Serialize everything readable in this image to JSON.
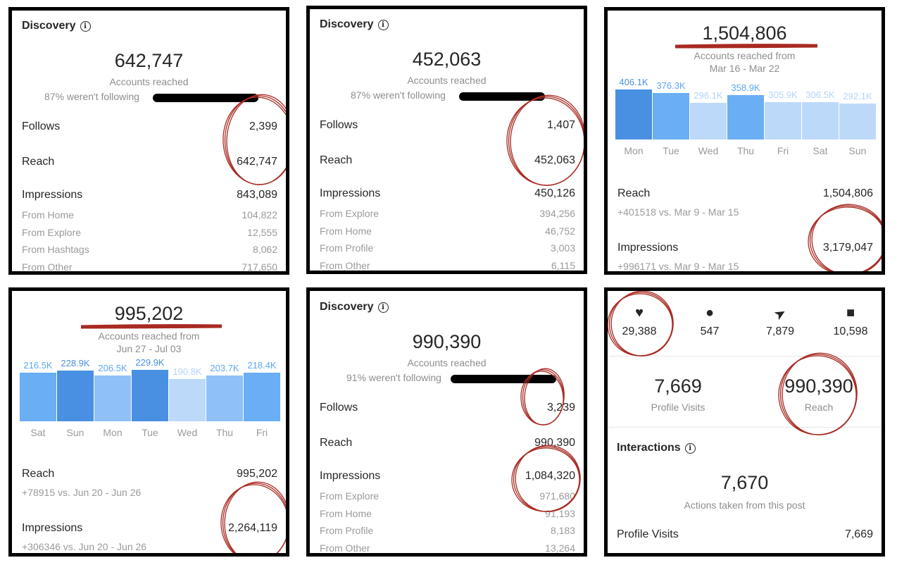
{
  "panel1": {
    "title": "Discovery",
    "info_icon": "i",
    "accounts_reached": "642,747",
    "accounts_label": "Accounts reached",
    "not_following": "87% weren't following",
    "follows_label": "Follows",
    "follows": "2,399",
    "reach_label": "Reach",
    "reach": "642,747",
    "impressions_label": "Impressions",
    "impressions": "843,089",
    "sources": [
      {
        "label": "From Home",
        "value": "104,822"
      },
      {
        "label": "From Explore",
        "value": "12,555"
      },
      {
        "label": "From Hashtags",
        "value": "8,062"
      },
      {
        "label": "From Other",
        "value": "717,650"
      }
    ]
  },
  "panel2": {
    "title": "Discovery",
    "info_icon": "i",
    "accounts_reached": "452,063",
    "accounts_label": "Accounts reached",
    "not_following": "87% weren't following",
    "follows_label": "Follows",
    "follows": "1,407",
    "reach_label": "Reach",
    "reach": "452,063",
    "impressions_label": "Impressions",
    "impressions": "450,126",
    "sources": [
      {
        "label": "From Explore",
        "value": "394,256"
      },
      {
        "label": "From Home",
        "value": "46,752"
      },
      {
        "label": "From Profile",
        "value": "3,003"
      },
      {
        "label": "From Other",
        "value": "6,115"
      }
    ]
  },
  "panel3": {
    "accounts_reached": "1,504,806",
    "accounts_label": "Accounts reached from",
    "date_range": "Mar 16 - Mar 22",
    "reach_label": "Reach",
    "reach": "1,504,806",
    "reach_change": "+401518 vs. Mar 9 - Mar 15",
    "impressions_label": "Impressions",
    "impressions": "3,179,047",
    "impressions_change": "+996171 vs. Mar 9 - Mar 15",
    "chart_data": {
      "type": "bar",
      "ylim": [
        0,
        430
      ],
      "unit": "K",
      "categories": [
        "Mon",
        "Tue",
        "Wed",
        "Thu",
        "Fri",
        "Sat",
        "Sun"
      ],
      "values": [
        406.1,
        376.3,
        296.1,
        358.9,
        305.9,
        306.5,
        292.1
      ],
      "labels": [
        "406.1K",
        "376.3K",
        "296.1K",
        "358.9K",
        "305.9K",
        "306.5K",
        "292.1K"
      ],
      "colors": [
        "#4a90e2",
        "#6aaef5",
        "#bcd9fa",
        "#6aaef5",
        "#bcd9fa",
        "#bcd9fa",
        "#bcd9fa"
      ]
    }
  },
  "panel4": {
    "accounts_reached": "995,202",
    "accounts_label": "Accounts reached from",
    "date_range": "Jun 27 - Jul 03",
    "reach_label": "Reach",
    "reach": "995,202",
    "reach_change": "+78915 vs. Jun 20 - Jun 26",
    "impressions_label": "Impressions",
    "impressions": "2,264,119",
    "impressions_change": "+306346 vs. Jun 20 - Jun 26",
    "chart_data": {
      "type": "bar",
      "ylim": [
        0,
        240
      ],
      "unit": "K",
      "categories": [
        "Sat",
        "Sun",
        "Mon",
        "Tue",
        "Wed",
        "Thu",
        "Fri"
      ],
      "values": [
        216.5,
        228.9,
        206.5,
        229.9,
        190.8,
        203.7,
        218.4
      ],
      "labels": [
        "216.5K",
        "228.9K",
        "206.5K",
        "229.9K",
        "190.8K",
        "203.7K",
        "218.4K"
      ],
      "colors": [
        "#6aaef5",
        "#4a90e2",
        "#8fc0f7",
        "#4a90e2",
        "#bcd9fa",
        "#8fc0f7",
        "#6aaef5"
      ]
    }
  },
  "panel5": {
    "title": "Discovery",
    "info_icon": "i",
    "accounts_reached": "990,390",
    "accounts_label": "Accounts reached",
    "not_following": "91% weren't following",
    "follows_label": "Follows",
    "follows": "3,239",
    "reach_label": "Reach",
    "reach": "990,390",
    "impressions_label": "Impressions",
    "impressions": "1,084,320",
    "sources": [
      {
        "label": "From Explore",
        "value": "971,680"
      },
      {
        "label": "From Home",
        "value": "91,193"
      },
      {
        "label": "From Profile",
        "value": "8,183"
      },
      {
        "label": "From Other",
        "value": "13,264"
      }
    ]
  },
  "panel6": {
    "stats": [
      {
        "icon": "heart-icon",
        "value": "29,388"
      },
      {
        "icon": "comment-icon",
        "value": "547"
      },
      {
        "icon": "share-icon",
        "value": "7,879"
      },
      {
        "icon": "bookmark-icon",
        "value": "10,598"
      }
    ],
    "profile_visits": "7,669",
    "profile_visits_label": "Profile Visits",
    "reach": "990,390",
    "reach_label": "Reach",
    "interactions_title": "Interactions",
    "info_icon": "i",
    "actions": "7,670",
    "actions_label": "Actions taken from this post",
    "row_label": "Profile Visits",
    "row_value": "7,669"
  },
  "colors": {
    "annotation_red": "#a82a22",
    "text": "#262626",
    "muted": "#8e8e8e"
  }
}
